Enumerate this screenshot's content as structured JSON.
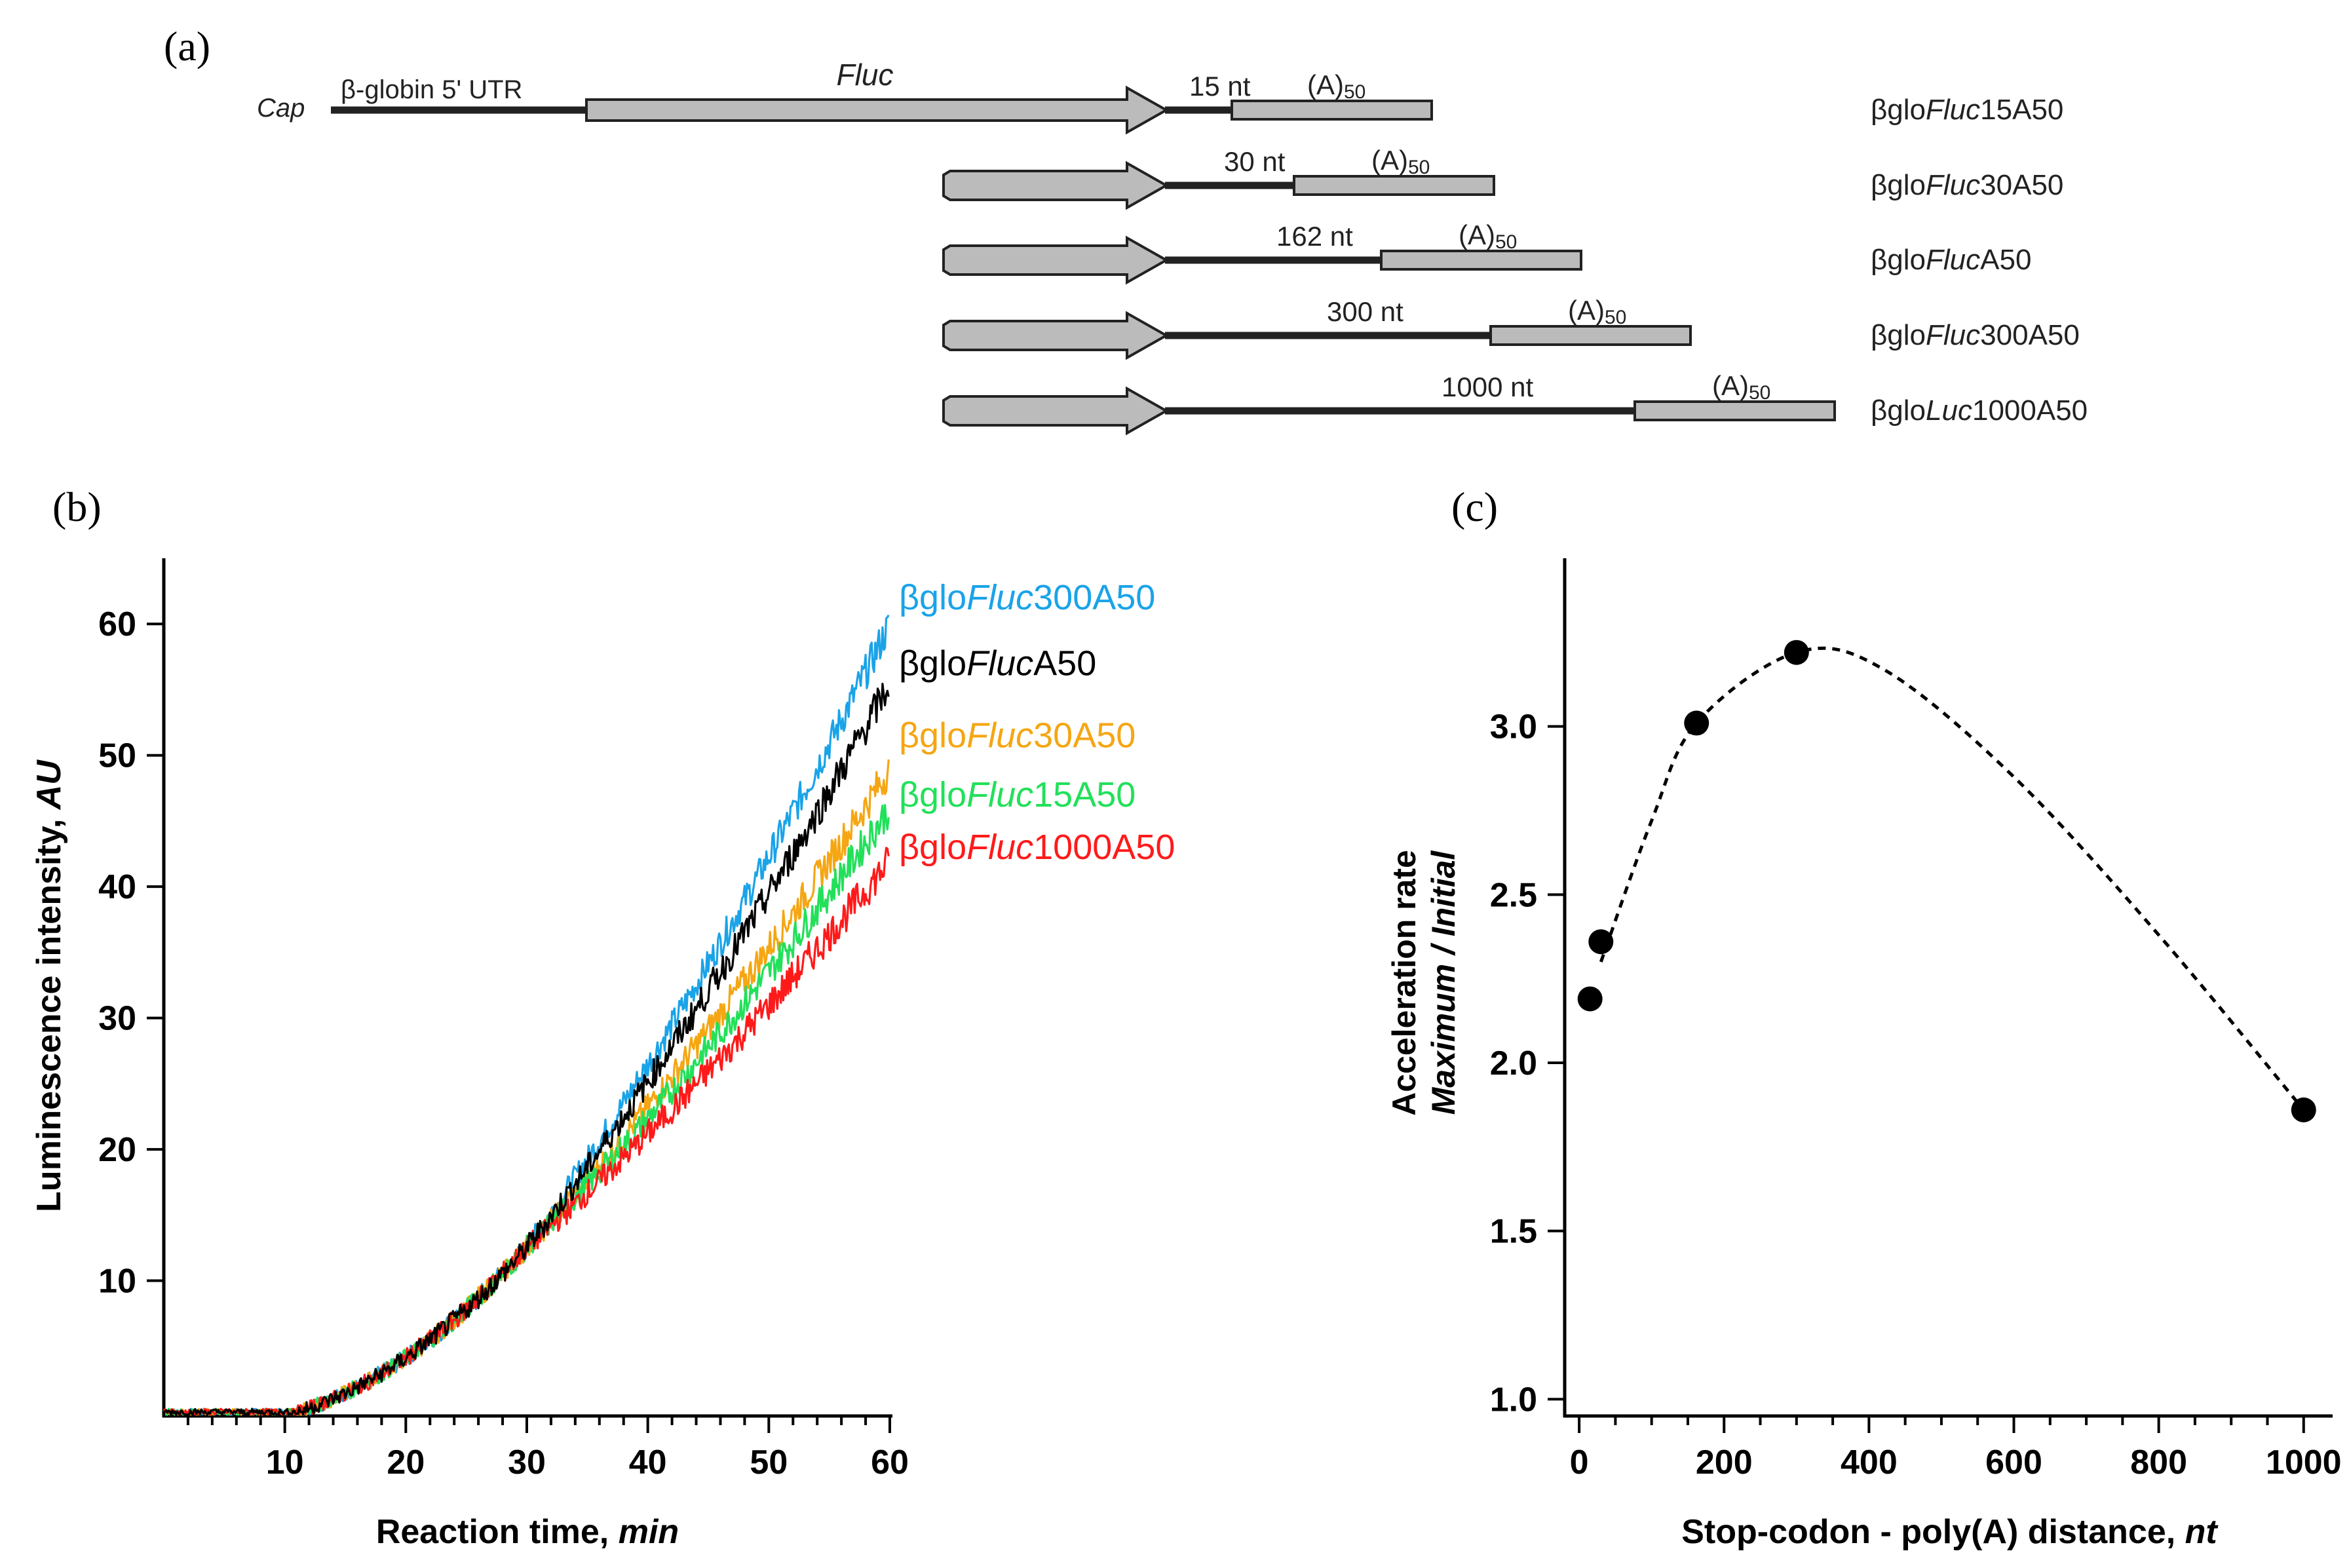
{
  "panels": {
    "a": {
      "label": "(a)"
    },
    "b": {
      "label": "(b)"
    },
    "c": {
      "label": "(c)"
    }
  },
  "constructs": {
    "cap": "Cap",
    "utr": "β-globin 5' UTR",
    "orf": "Fluc",
    "polyA_main": "(A)",
    "polyA_sub": "50",
    "rows": [
      {
        "id": "15",
        "distance": "15 nt",
        "name_pre": "βglo",
        "name_it": "Fluc",
        "name_post": "15A50",
        "nt": 15
      },
      {
        "id": "30",
        "distance": "30 nt",
        "name_pre": "βglo",
        "name_it": "Fluc",
        "name_post": "30A50",
        "nt": 30
      },
      {
        "id": "162",
        "distance": "162 nt",
        "name_pre": "βglo",
        "name_it": "Fluc",
        "name_post": "A50",
        "nt": 162
      },
      {
        "id": "300",
        "distance": "300 nt",
        "name_pre": "βglo",
        "name_it": "Fluc",
        "name_post": "300A50",
        "nt": 300
      },
      {
        "id": "1000",
        "distance": "1000 nt",
        "name_pre": "βglo",
        "name_it": "Luc",
        "name_post": "1000A50",
        "nt": 1000
      }
    ]
  },
  "chart_data": [
    {
      "type": "line",
      "xlabel_main": "Reaction time, ",
      "xlabel_unit": "min",
      "ylabel_main": "Luminescence intensity, ",
      "ylabel_unit": "AU",
      "xlim": [
        0,
        60
      ],
      "ylim": [
        -0.3,
        65
      ],
      "xticks": [
        10,
        20,
        30,
        40,
        50,
        60
      ],
      "yticks": [
        10,
        20,
        30,
        40,
        50,
        60
      ],
      "lag_min": 11,
      "series": [
        {
          "name_pre": "βglo",
          "name_it": "Fluc",
          "name_post": "300A50",
          "color": "#1aa3e8",
          "end_value": 60,
          "label_value": 62
        },
        {
          "name_pre": "βglo",
          "name_it": "Fluc",
          "name_post": "A50",
          "color": "#000000",
          "end_value": 55.5,
          "label_value": 57
        },
        {
          "name_pre": "βglo",
          "name_it": "Fluc",
          "name_post": "30A50",
          "color": "#f5a612",
          "end_value": 49,
          "label_value": 51.5
        },
        {
          "name_pre": "βglo",
          "name_it": "Fluc",
          "name_post": "15A50",
          "color": "#22e05a",
          "end_value": 46,
          "label_value": 47
        },
        {
          "name_pre": "βglo",
          "name_it": "Fluc",
          "name_post": "1000A50",
          "color": "#ff1a1a",
          "end_value": 42,
          "label_value": 43
        }
      ]
    },
    {
      "type": "scatter",
      "xlabel_main": "Stop-codon - poly(A) distance, ",
      "xlabel_unit": "nt",
      "ylabel_line1": "Acceleration rate",
      "ylabel_line2": "Maximum / Initial",
      "xlim": [
        -20,
        1040
      ],
      "ylim": [
        0.95,
        3.5
      ],
      "xticks": [
        0,
        200,
        400,
        600,
        800,
        1000
      ],
      "yticks": [
        1.0,
        1.5,
        2.0,
        2.5,
        3.0
      ],
      "ytick_labels": [
        "1.0",
        "1.5",
        "2.0",
        "2.5",
        "3.0"
      ],
      "x": [
        15,
        30,
        162,
        300,
        1000
      ],
      "y": [
        2.19,
        2.36,
        3.01,
        3.22,
        1.86
      ],
      "fit": "dashed smooth curve through points"
    }
  ]
}
